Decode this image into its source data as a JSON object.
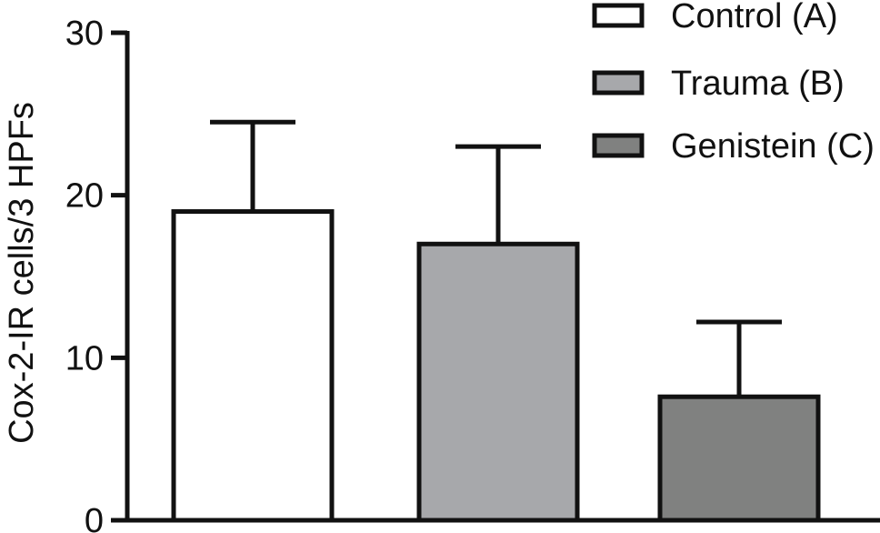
{
  "chart_data": {
    "type": "bar",
    "categories": [
      "Control (A)",
      "Trauma (B)",
      "Genistein (C)"
    ],
    "series": [
      {
        "values": [
          19.0,
          17.0,
          7.6
        ],
        "error_upper": [
          5.5,
          6.0,
          4.6
        ],
        "colors": [
          "#ffffff",
          "#a7a8ab",
          "#808180"
        ]
      }
    ],
    "ylabel": "Cox-2-IR cells/3 HPFs",
    "ylim": [
      0,
      30
    ],
    "yticks": [
      0,
      10,
      20,
      30
    ],
    "grid": false,
    "legend": {
      "placement": "top-right",
      "entries": [
        {
          "label": "Control (A)",
          "color": "#ffffff"
        },
        {
          "label": "Trauma (B)",
          "color": "#a7a8ab"
        },
        {
          "label": "Genistein (C)",
          "color": "#808180"
        }
      ]
    }
  }
}
